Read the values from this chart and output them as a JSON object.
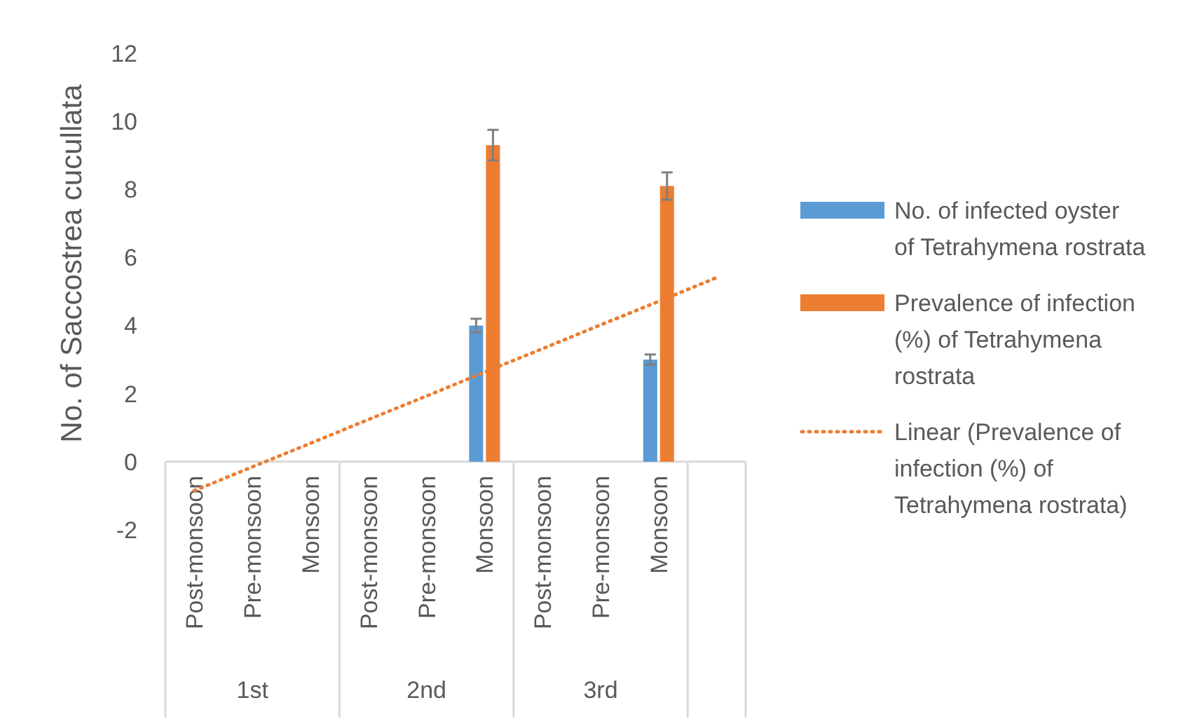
{
  "chart_data": {
    "type": "bar",
    "ylabel": "No. of Saccostrea cucullata",
    "categories": [
      "Post-monsoon",
      "Pre-monsoon",
      "Monsoon",
      "Post-monsoon",
      "Pre-monsoon",
      "Monsoon",
      "Post-monsoon",
      "Pre-monsoon",
      "Monsoon",
      null
    ],
    "annotations": [
      "1st",
      "2nd",
      "3rd"
    ],
    "series": [
      {
        "name": "No. of infected oyster of Tetrahymena rostrata",
        "color": "#5b9bd5",
        "values": [
          0,
          0,
          0,
          0,
          0,
          4,
          0,
          0,
          3,
          null
        ],
        "errors": [
          null,
          null,
          null,
          null,
          null,
          0.2,
          null,
          null,
          0.15,
          null
        ]
      },
      {
        "name": "Prevalence of infection (%) of Tetrahymena rostrata",
        "color": "#ed7d31",
        "values": [
          0,
          0,
          0,
          0,
          0,
          9.3,
          0,
          0,
          8.1,
          null
        ],
        "errors": [
          null,
          null,
          null,
          null,
          null,
          0.45,
          null,
          null,
          0.4,
          null
        ]
      },
      {
        "name": "Linear (Prevalence of infection (%) of Tetrahymena rostrata)",
        "type": "line",
        "line_style": "dotted",
        "color": "#ed7d31",
        "values": [
          -0.85,
          -0.15,
          0.54,
          1.24,
          1.93,
          2.63,
          3.32,
          4.02,
          4.71,
          5.41
        ]
      }
    ],
    "ylim": [
      -2,
      12
    ],
    "yticks": [
      -2,
      0,
      2,
      4,
      6,
      8,
      10,
      12
    ],
    "grid": false,
    "legend": "right"
  }
}
